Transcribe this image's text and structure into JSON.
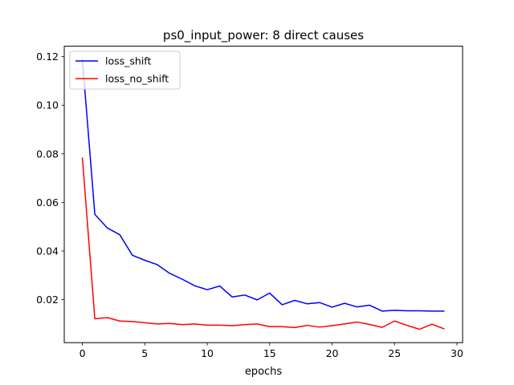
{
  "chart_data": {
    "type": "line",
    "title": "ps0_input_power: 8 direct causes",
    "xlabel": "epochs",
    "ylabel": "",
    "xlim": [
      -1.45,
      30.45
    ],
    "ylim": [
      0.0023,
      0.1243
    ],
    "xticks": [
      0,
      5,
      10,
      15,
      20,
      25,
      30
    ],
    "yticks": [
      0.02,
      0.04,
      0.06,
      0.08,
      0.1,
      0.12
    ],
    "ytick_labels": [
      "0.02",
      "0.04",
      "0.06",
      "0.08",
      "0.10",
      "0.12"
    ],
    "grid": false,
    "legend_position": "top-left",
    "x": [
      0,
      1,
      2,
      3,
      4,
      5,
      6,
      7,
      8,
      9,
      10,
      11,
      12,
      13,
      14,
      15,
      16,
      17,
      18,
      19,
      20,
      21,
      22,
      23,
      24,
      25,
      26,
      27,
      28,
      29
    ],
    "series": [
      {
        "name": "loss_shift",
        "color": "#0000ff",
        "values": [
          0.119,
          0.0551,
          0.0495,
          0.0467,
          0.0383,
          0.0362,
          0.0344,
          0.0308,
          0.0284,
          0.0257,
          0.0241,
          0.0256,
          0.0211,
          0.0219,
          0.0199,
          0.0227,
          0.0179,
          0.0197,
          0.0183,
          0.0188,
          0.0169,
          0.0185,
          0.017,
          0.0177,
          0.0153,
          0.0156,
          0.0154,
          0.0154,
          0.0153,
          0.0153
        ]
      },
      {
        "name": "loss_no_shift",
        "color": "#ff0000",
        "values": [
          0.0785,
          0.0121,
          0.0126,
          0.0112,
          0.011,
          0.0105,
          0.01,
          0.0102,
          0.0097,
          0.01,
          0.0095,
          0.0095,
          0.0093,
          0.0097,
          0.01,
          0.0089,
          0.0089,
          0.0085,
          0.0094,
          0.0087,
          0.0093,
          0.01,
          0.0108,
          0.0098,
          0.0086,
          0.0112,
          0.0094,
          0.0078,
          0.0099,
          0.0079
        ]
      }
    ]
  }
}
